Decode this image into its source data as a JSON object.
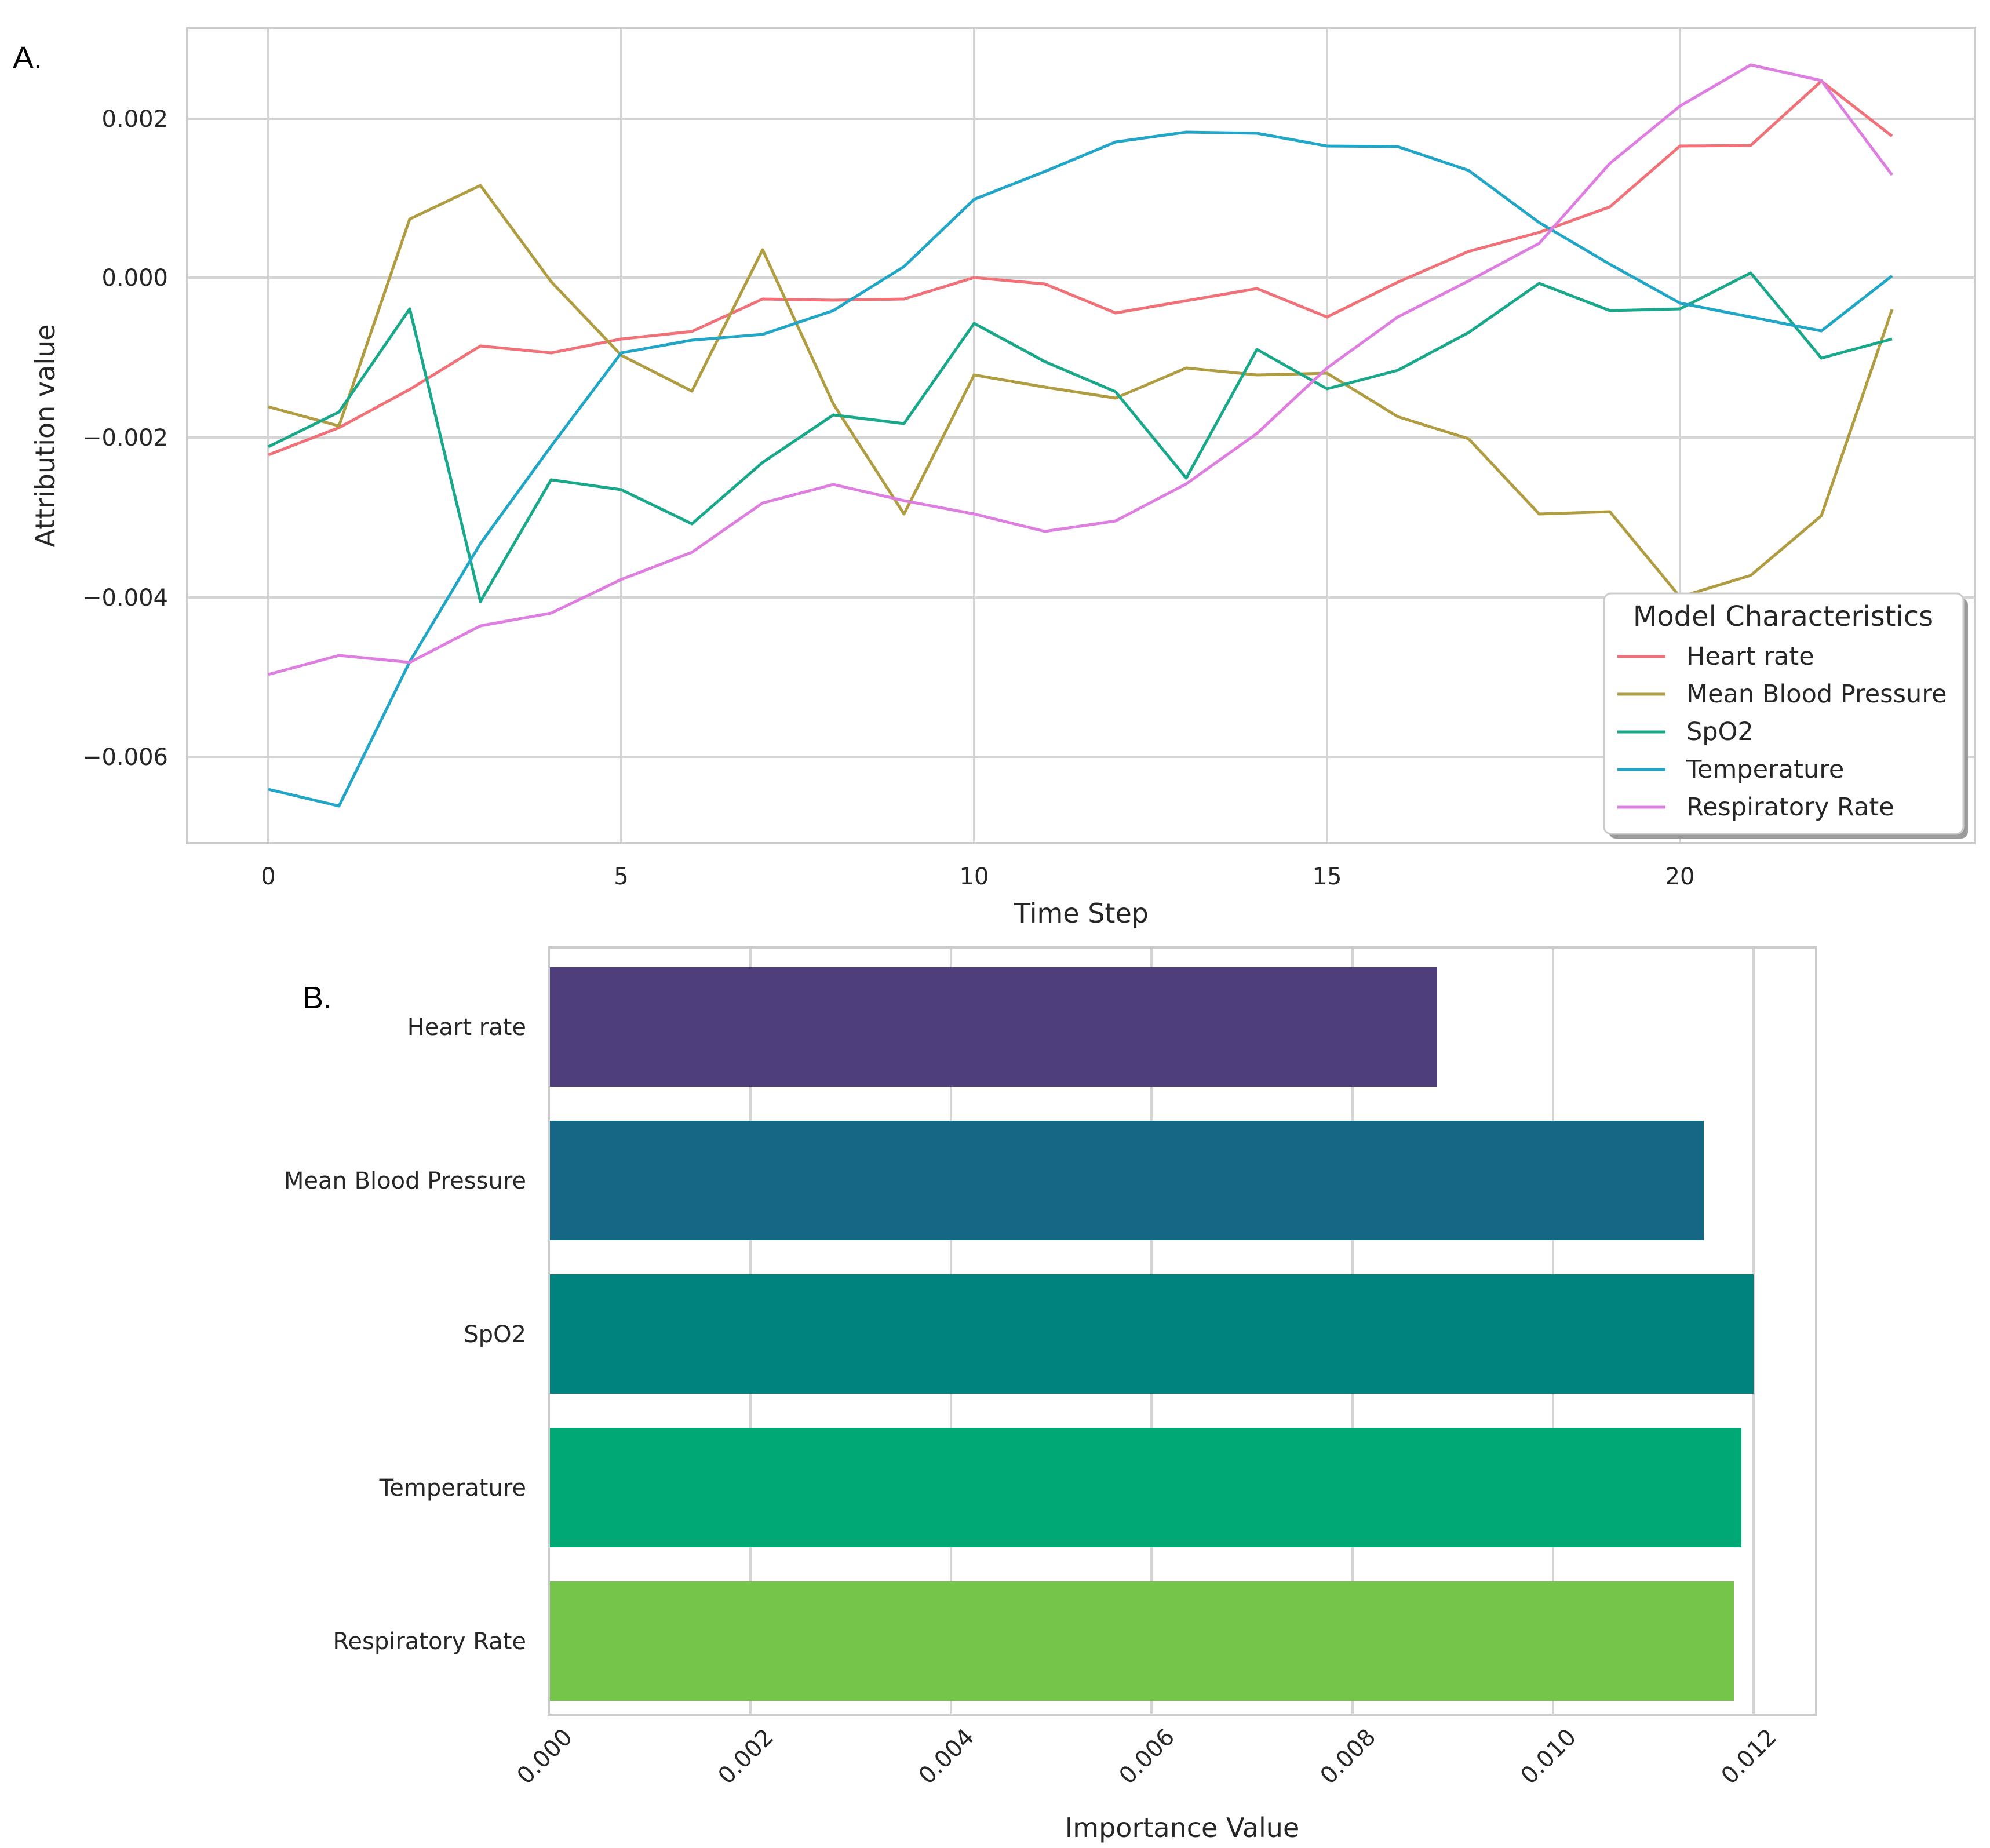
{
  "chart_data": [
    {
      "panel": "A.",
      "type": "line",
      "xlabel": "Time Step",
      "ylabel": "Attribution value",
      "xlim": [
        -1.15,
        24.15
      ],
      "ylim": [
        -0.0071,
        0.00315
      ],
      "xticks": [
        0,
        5,
        10,
        15,
        20
      ],
      "xtick_labels": [
        "0",
        "5",
        "10",
        "15",
        "20"
      ],
      "yticks": [
        0.002,
        0.0,
        -0.002,
        -0.004,
        -0.006
      ],
      "ytick_labels": [
        "0.002",
        "0.000",
        "−0.002",
        "−0.004",
        "−0.006"
      ],
      "grid": true,
      "legend": {
        "title": "Model Characteristics",
        "placement": "lower-right"
      },
      "x": [
        0,
        1,
        2,
        3,
        4,
        5,
        6,
        7,
        8,
        9,
        10,
        11,
        12,
        13,
        14,
        15,
        16,
        17,
        18,
        19,
        20,
        21,
        22,
        23
      ],
      "series": [
        {
          "name": "Heart rate",
          "color": "#f07178",
          "values": [
            -0.00222,
            -0.00188,
            -0.0014,
            -0.00086,
            -0.00095,
            -0.00077,
            -0.00068,
            -0.00027,
            -0.00028,
            -0.00027,
            0.0,
            -8e-05,
            -0.00044,
            -0.00029,
            -0.00014,
            -0.00049,
            -6e-05,
            0.00033,
            0.00057,
            0.00089,
            0.00165,
            0.00166,
            0.00246,
            0.00177
          ]
        },
        {
          "name": "Mean Blood Pressure",
          "color": "#b09d42",
          "values": [
            -0.00162,
            -0.00186,
            0.00073,
            0.00115,
            -5e-05,
            -0.00097,
            -0.00142,
            0.00035,
            -0.00158,
            -0.00296,
            -0.00122,
            -0.00137,
            -0.00151,
            -0.00113,
            -0.00122,
            -0.0012,
            -0.00174,
            -0.00202,
            -0.00296,
            -0.00293,
            -0.004,
            -0.00373,
            -0.00298,
            -0.0004
          ]
        },
        {
          "name": "SpO2",
          "color": "#1aa88a",
          "values": [
            -0.00212,
            -0.00168,
            -0.00039,
            -0.00406,
            -0.00253,
            -0.00265,
            -0.00308,
            -0.00231,
            -0.00172,
            -0.00183,
            -0.00057,
            -0.00105,
            -0.00143,
            -0.00251,
            -0.0009,
            -0.00139,
            -0.00116,
            -0.00069,
            -7e-05,
            -0.00041,
            -0.00039,
            6e-05,
            -0.00101,
            -0.00077
          ]
        },
        {
          "name": "Temperature",
          "color": "#22a6c8",
          "values": [
            -0.00641,
            -0.00662,
            -0.00481,
            -0.00333,
            -0.00211,
            -0.00094,
            -0.00078,
            -0.00071,
            -0.00041,
            0.00014,
            0.00098,
            0.00133,
            0.0017,
            0.00182,
            0.00181,
            0.00165,
            0.00164,
            0.00134,
            0.00069,
            0.00017,
            -0.00032,
            -0.00049,
            -0.00067,
            2e-05
          ]
        },
        {
          "name": "Respiratory Rate",
          "color": "#dd7ee0",
          "values": [
            -0.00497,
            -0.00473,
            -0.00482,
            -0.00436,
            -0.0042,
            -0.00378,
            -0.00344,
            -0.00282,
            -0.00259,
            -0.00279,
            -0.00296,
            -0.00318,
            -0.00305,
            -0.00258,
            -0.00195,
            -0.00113,
            -0.00049,
            -4e-05,
            0.00043,
            0.00143,
            0.00215,
            0.00266,
            0.00247,
            0.00128
          ]
        }
      ]
    },
    {
      "panel": "B.",
      "type": "bar",
      "orientation": "horizontal",
      "xlabel": "Importance Value",
      "xlim": [
        0.0,
        0.0126
      ],
      "xticks": [
        0.0,
        0.002,
        0.004,
        0.006,
        0.008,
        0.01,
        0.012
      ],
      "xtick_labels": [
        "0.000",
        "0.002",
        "0.004",
        "0.006",
        "0.008",
        "0.010",
        "0.012"
      ],
      "grid": true,
      "categories": [
        "Heart rate",
        "Mean Blood Pressure",
        "SpO2",
        "Temperature",
        "Respiratory Rate"
      ],
      "values": [
        0.00885,
        0.0115,
        0.012,
        0.01188,
        0.0118
      ],
      "colors": [
        "#4e3f7c",
        "#166685",
        "#00827f",
        "#00a876",
        "#76c54b"
      ]
    }
  ]
}
